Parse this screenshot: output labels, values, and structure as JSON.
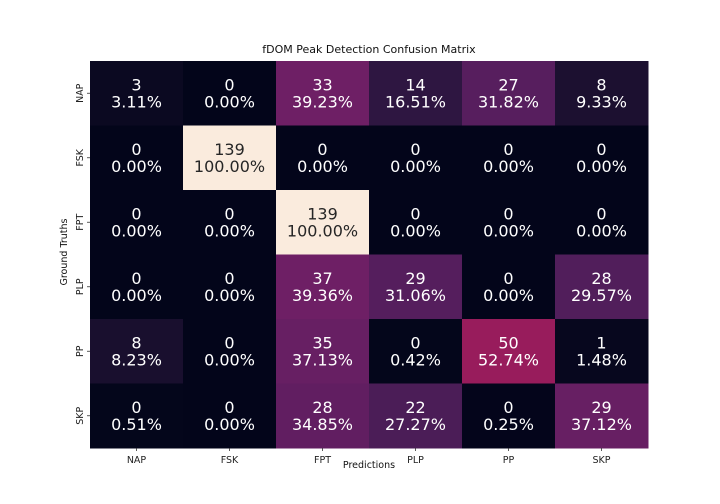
{
  "chart_data": {
    "type": "heatmap",
    "title": "fDOM Peak Detection Confusion Matrix",
    "xlabel": "Predictions",
    "ylabel": "Ground Truths",
    "x_categories": [
      "NAP",
      "FSK",
      "FPT",
      "PLP",
      "PP",
      "SKP"
    ],
    "y_categories": [
      "NAP",
      "FSK",
      "FPT",
      "PLP",
      "PP",
      "SKP"
    ],
    "counts": [
      [
        3,
        0,
        33,
        14,
        27,
        8
      ],
      [
        0,
        139,
        0,
        0,
        0,
        0
      ],
      [
        0,
        0,
        139,
        0,
        0,
        0
      ],
      [
        0,
        0,
        37,
        29,
        0,
        28
      ],
      [
        8,
        0,
        35,
        0,
        50,
        1
      ],
      [
        0,
        0,
        28,
        22,
        0,
        29
      ]
    ],
    "percent_labels": [
      [
        "3.11%",
        "0.00%",
        "39.23%",
        "16.51%",
        "31.82%",
        "9.33%"
      ],
      [
        "0.00%",
        "100.00%",
        "0.00%",
        "0.00%",
        "0.00%",
        "0.00%"
      ],
      [
        "0.00%",
        "0.00%",
        "100.00%",
        "0.00%",
        "0.00%",
        "0.00%"
      ],
      [
        "0.00%",
        "0.00%",
        "39.36%",
        "31.06%",
        "0.00%",
        "29.57%"
      ],
      [
        "8.23%",
        "0.00%",
        "37.13%",
        "0.42%",
        "52.74%",
        "1.48%"
      ],
      [
        "0.51%",
        "0.00%",
        "34.85%",
        "27.27%",
        "0.25%",
        "37.12%"
      ]
    ],
    "percent_values": [
      [
        3.11,
        0.0,
        39.23,
        16.51,
        31.82,
        9.33
      ],
      [
        0.0,
        100.0,
        0.0,
        0.0,
        0.0,
        0.0
      ],
      [
        0.0,
        0.0,
        100.0,
        0.0,
        0.0,
        0.0
      ],
      [
        0.0,
        0.0,
        39.36,
        31.06,
        0.0,
        29.57
      ],
      [
        8.23,
        0.0,
        37.13,
        0.42,
        52.74,
        1.48
      ],
      [
        0.51,
        0.0,
        34.85,
        27.27,
        0.25,
        37.12
      ]
    ],
    "color_range": [
      0,
      100
    ],
    "colormap": "rocket",
    "colorbar": false,
    "grid": false
  }
}
